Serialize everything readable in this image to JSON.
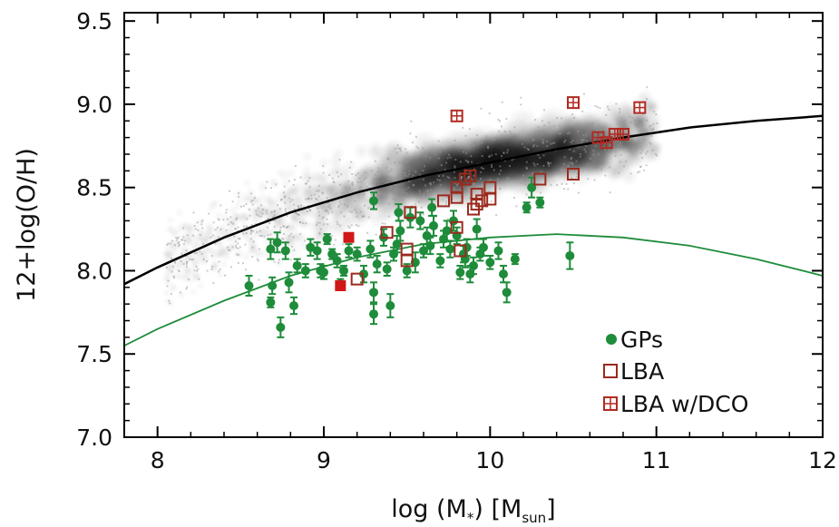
{
  "chart_data": {
    "type": "scatter",
    "title": "",
    "xlabel": {
      "base": "log (M",
      "sub1": "*",
      "mid": ") [M",
      "sub2": "sun",
      "end": "]"
    },
    "ylabel": "12+log(O/H)",
    "xlim": [
      7.8,
      12.0
    ],
    "ylim": [
      7.0,
      9.55
    ],
    "xticks": [
      "8",
      "9",
      "10",
      "11",
      "12"
    ],
    "yticks": [
      "7.0",
      "7.5",
      "8.0",
      "8.5",
      "9.0",
      "9.5"
    ],
    "legend_position": "bottom-right",
    "colors": {
      "gps": "#1e8c3a",
      "lba": "#9b2a1e",
      "lba_dco": "#b22a22",
      "lba_filled": "#d01818",
      "black_curve": "#000000",
      "green_curve": "#1e8c3a",
      "cloud": "#707070"
    },
    "series": [
      {
        "name": "GPs",
        "marker": "filled-circle",
        "points": [
          [
            8.55,
            7.91,
            0.06
          ],
          [
            8.68,
            7.81,
            0.03
          ],
          [
            8.69,
            7.91,
            0.05
          ],
          [
            8.68,
            8.13,
            0.06
          ],
          [
            8.72,
            8.17,
            0.06
          ],
          [
            8.74,
            7.66,
            0.06
          ],
          [
            8.77,
            8.12,
            0.05
          ],
          [
            8.79,
            7.93,
            0.06
          ],
          [
            8.82,
            7.79,
            0.05
          ],
          [
            8.84,
            8.03,
            0.04
          ],
          [
            8.89,
            8.0,
            0.04
          ],
          [
            8.92,
            8.14,
            0.05
          ],
          [
            8.96,
            8.12,
            0.05
          ],
          [
            8.98,
            8.0,
            0.04
          ],
          [
            9.0,
            7.99,
            0.04
          ],
          [
            9.02,
            8.19,
            0.03
          ],
          [
            9.05,
            8.1,
            0.03
          ],
          [
            9.08,
            8.06,
            0.04
          ],
          [
            9.1,
            7.92,
            0.03
          ],
          [
            9.12,
            8.0,
            0.03
          ],
          [
            9.15,
            8.12,
            0.04
          ],
          [
            9.2,
            8.1,
            0.04
          ],
          [
            9.24,
            7.98,
            0.05
          ],
          [
            9.28,
            8.13,
            0.05
          ],
          [
            9.3,
            7.87,
            0.06
          ],
          [
            9.3,
            7.74,
            0.06
          ],
          [
            9.32,
            8.04,
            0.05
          ],
          [
            9.36,
            8.2,
            0.05
          ],
          [
            9.38,
            8.01,
            0.04
          ],
          [
            9.4,
            7.79,
            0.07
          ],
          [
            9.42,
            8.1,
            0.04
          ],
          [
            9.44,
            8.16,
            0.05
          ],
          [
            9.46,
            8.24,
            0.06
          ],
          [
            9.5,
            8.0,
            0.04
          ],
          [
            9.52,
            8.32,
            0.06
          ],
          [
            9.55,
            8.05,
            0.06
          ],
          [
            9.58,
            8.3,
            0.05
          ],
          [
            9.6,
            8.12,
            0.04
          ],
          [
            9.62,
            8.21,
            0.05
          ],
          [
            9.64,
            8.15,
            0.05
          ],
          [
            9.66,
            8.27,
            0.06
          ],
          [
            9.7,
            8.06,
            0.04
          ],
          [
            9.72,
            8.19,
            0.05
          ],
          [
            9.74,
            8.24,
            0.06
          ],
          [
            9.76,
            8.13,
            0.05
          ],
          [
            9.78,
            8.3,
            0.06
          ],
          [
            9.8,
            8.21,
            0.05
          ],
          [
            9.82,
            7.99,
            0.04
          ],
          [
            9.84,
            8.1,
            0.05
          ],
          [
            9.86,
            8.14,
            0.05
          ],
          [
            9.88,
            7.98,
            0.05
          ],
          [
            9.9,
            8.03,
            0.05
          ],
          [
            9.92,
            8.25,
            0.06
          ],
          [
            9.94,
            8.1,
            0.04
          ],
          [
            9.96,
            8.14,
            0.05
          ],
          [
            10.0,
            8.05,
            0.04
          ],
          [
            10.05,
            8.12,
            0.05
          ],
          [
            10.08,
            7.98,
            0.05
          ],
          [
            10.1,
            7.87,
            0.06
          ],
          [
            10.15,
            8.07,
            0.03
          ],
          [
            10.22,
            8.38,
            0.03
          ],
          [
            10.25,
            8.5,
            0.06
          ],
          [
            10.3,
            8.41,
            0.03
          ],
          [
            10.48,
            8.09,
            0.08
          ],
          [
            9.3,
            8.42,
            0.05
          ],
          [
            9.45,
            8.35,
            0.05
          ],
          [
            9.65,
            8.38,
            0.05
          ],
          [
            9.85,
            8.07,
            0.05
          ]
        ]
      },
      {
        "name": "LBA",
        "marker": "open-square",
        "points": [
          [
            9.2,
            7.95
          ],
          [
            9.38,
            8.23
          ],
          [
            9.5,
            8.13
          ],
          [
            9.5,
            8.06
          ],
          [
            9.52,
            8.35
          ],
          [
            9.72,
            8.42
          ],
          [
            9.8,
            8.44
          ],
          [
            9.8,
            8.26
          ],
          [
            9.8,
            8.5
          ],
          [
            9.82,
            8.12
          ],
          [
            9.85,
            8.55
          ],
          [
            9.88,
            8.57
          ],
          [
            9.9,
            8.37
          ],
          [
            9.92,
            8.4
          ],
          [
            9.92,
            8.46
          ],
          [
            9.95,
            8.42
          ],
          [
            10.0,
            8.43
          ],
          [
            10.0,
            8.5
          ],
          [
            10.3,
            8.55
          ],
          [
            10.5,
            8.58
          ]
        ]
      },
      {
        "name": "LBA w/DCO",
        "marker": "crossed-square",
        "points": [
          [
            9.8,
            8.93
          ],
          [
            10.5,
            9.01
          ],
          [
            10.65,
            8.8
          ],
          [
            10.7,
            8.77
          ],
          [
            10.75,
            8.82
          ],
          [
            10.8,
            8.82
          ],
          [
            10.9,
            8.98
          ]
        ]
      }
    ],
    "extra_points": [
      {
        "marker": "filled-square",
        "points": [
          [
            9.15,
            8.2
          ],
          [
            9.1,
            7.91
          ]
        ]
      }
    ],
    "curves": [
      {
        "color": "black",
        "points": [
          [
            7.8,
            7.92
          ],
          [
            8.0,
            8.02
          ],
          [
            8.4,
            8.2
          ],
          [
            8.8,
            8.35
          ],
          [
            9.2,
            8.47
          ],
          [
            9.6,
            8.57
          ],
          [
            10.0,
            8.65
          ],
          [
            10.4,
            8.73
          ],
          [
            10.8,
            8.8
          ],
          [
            11.2,
            8.86
          ],
          [
            11.6,
            8.9
          ],
          [
            12.0,
            8.93
          ]
        ]
      },
      {
        "color": "green",
        "points": [
          [
            7.8,
            7.55
          ],
          [
            8.0,
            7.65
          ],
          [
            8.4,
            7.82
          ],
          [
            8.8,
            7.97
          ],
          [
            9.2,
            8.08
          ],
          [
            9.6,
            8.16
          ],
          [
            10.0,
            8.2
          ],
          [
            10.4,
            8.22
          ],
          [
            10.8,
            8.2
          ],
          [
            11.2,
            8.15
          ],
          [
            11.6,
            8.07
          ],
          [
            12.0,
            7.97
          ]
        ]
      }
    ],
    "background": {
      "description_cloud": "grey density of galaxies",
      "spread": 0.12
    }
  }
}
